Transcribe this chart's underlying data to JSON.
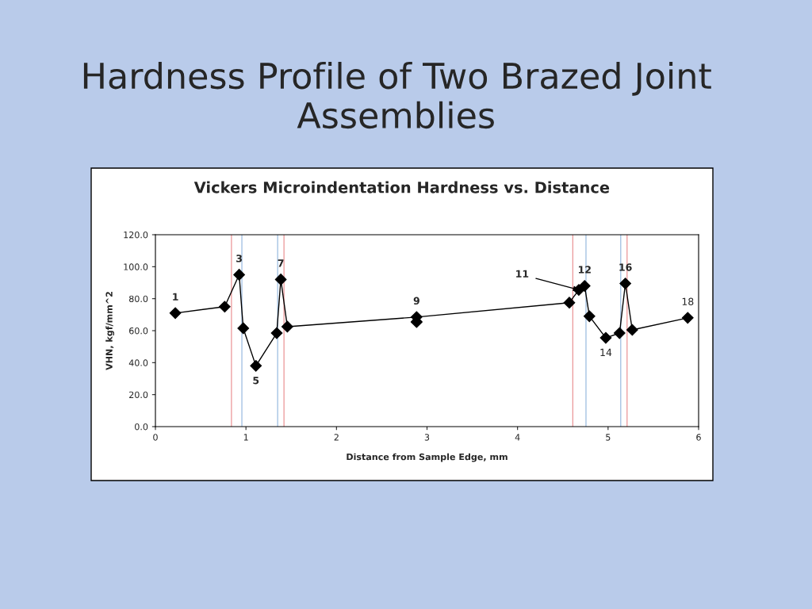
{
  "chart_data": {
    "type": "line",
    "title": "Hardness Profile of Two Brazed Joint Assemblies",
    "subtitle": "Vickers Microindentation Hardness vs. Distance",
    "xlabel": "Distance from Sample Edge, mm",
    "ylabel": "VHN, kgf/mm^2",
    "series": [
      {
        "color": "#000000",
        "x": [
          0.22,
          0.765,
          0.925,
          0.97,
          1.11,
          1.34,
          1.385,
          1.457,
          2.885,
          4.572,
          4.677,
          4.741,
          4.794,
          4.975,
          5.127,
          5.191,
          5.267,
          5.88
        ],
        "values": [
          71,
          75,
          95,
          61.5,
          38,
          58.5,
          92,
          62.5,
          68.5,
          77.5,
          85.5,
          88,
          69,
          55.5,
          58.5,
          89.5,
          60.5,
          68
        ]
      },
      {
        "type": "scatter",
        "color": "#000000",
        "x": [
          2.885
        ],
        "values": [
          65.5
        ]
      }
    ],
    "marker": "diamond",
    "xlim": [
      0,
      6
    ],
    "xticks": [
      0,
      1,
      2,
      3,
      4,
      5,
      6
    ],
    "ylim": [
      0,
      120
    ],
    "yticks": [
      {
        "value": 0,
        "label": "0.0"
      },
      {
        "value": 20,
        "label": "20.0"
      },
      {
        "value": 40,
        "label": "40.0"
      },
      {
        "value": 60,
        "label": "60.0"
      },
      {
        "value": 80,
        "label": "80.0"
      },
      {
        "value": 100,
        "label": "100.0"
      },
      {
        "value": 120,
        "label": "120.0"
      }
    ],
    "ref_lines": [
      {
        "axis": "x",
        "value": 0.84,
        "color": "#e8888a"
      },
      {
        "axis": "x",
        "value": 0.955,
        "color": "#8fb4dc"
      },
      {
        "axis": "x",
        "value": 1.35,
        "color": "#8fb4dc"
      },
      {
        "axis": "x",
        "value": 1.42,
        "color": "#e8888a"
      },
      {
        "axis": "x",
        "value": 4.61,
        "color": "#e8888a"
      },
      {
        "axis": "x",
        "value": 4.756,
        "color": "#8fb4dc"
      },
      {
        "axis": "x",
        "value": 5.14,
        "color": "#8fb4dc"
      },
      {
        "axis": "x",
        "value": 5.21,
        "color": "#e8888a"
      }
    ],
    "annotations": [
      {
        "text": "1",
        "x": 0.22,
        "y": 71
      },
      {
        "text": "3",
        "x": 0.925,
        "y": 95
      },
      {
        "text": "5",
        "x": 1.11,
        "y": 38
      },
      {
        "text": "7",
        "x": 1.385,
        "y": 92
      },
      {
        "text": "9",
        "x": 2.885,
        "y": 68.5
      },
      {
        "text": "11",
        "x": 4.677,
        "y": 85.5
      },
      {
        "text": "12",
        "x": 4.741,
        "y": 88
      },
      {
        "text": "16",
        "x": 5.191,
        "y": 89.5
      },
      {
        "text": "14",
        "x": 4.975,
        "y": 55.5
      },
      {
        "text": "18",
        "x": 5.88,
        "y": 68
      }
    ],
    "grid": false,
    "legend": false
  }
}
